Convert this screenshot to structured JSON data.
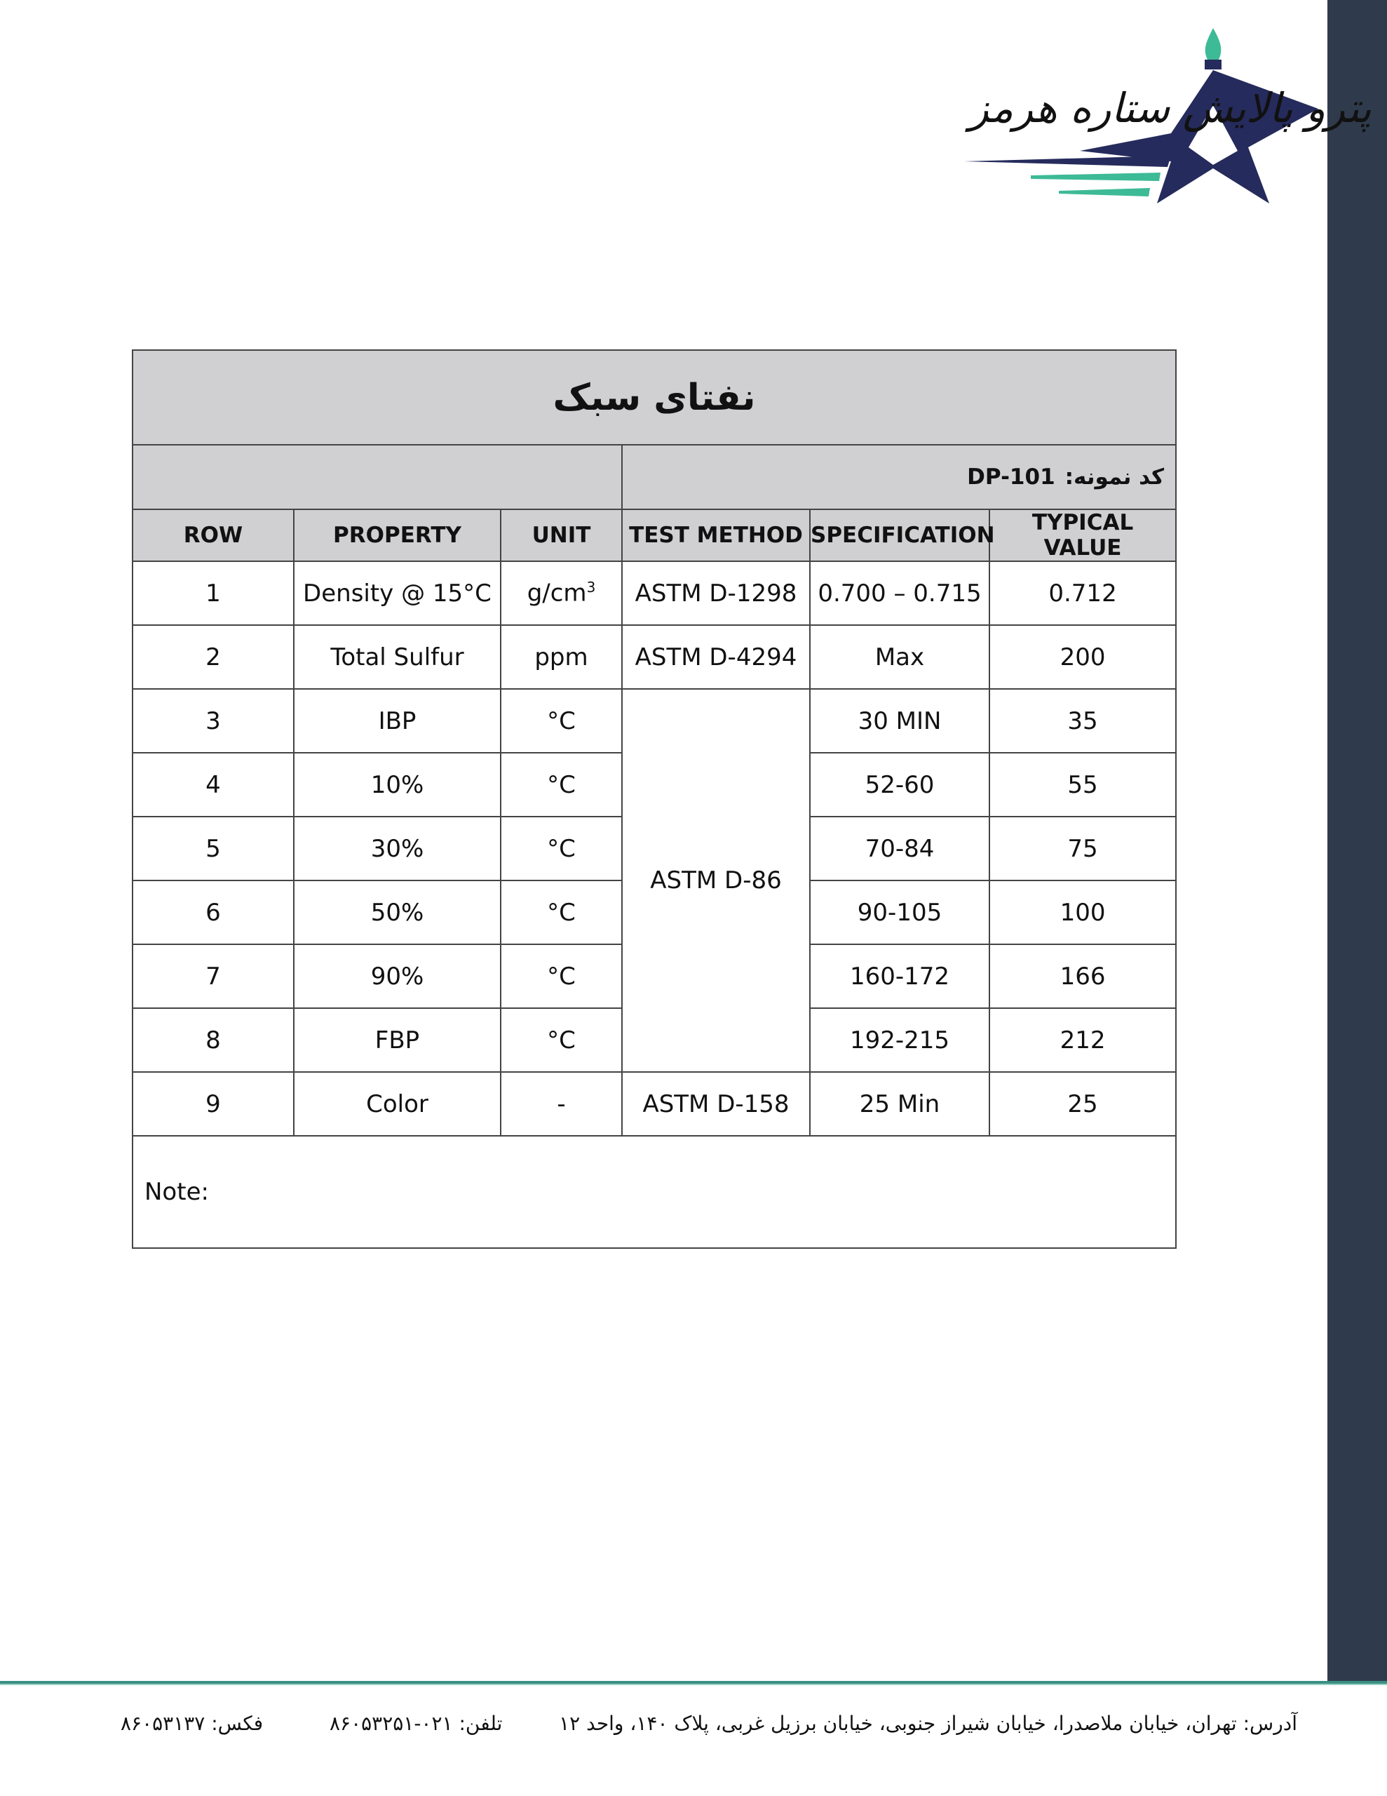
{
  "logo": {
    "text": "پترو پالایش ستاره هرمز",
    "colors": {
      "navy": "#252b5c",
      "green": "#3dba96"
    }
  },
  "title": "نفتای سبک",
  "sample_code": {
    "label": "کد نمونه:",
    "value": "DP-101"
  },
  "columns": [
    "ROW",
    "PROPERTY",
    "UNIT",
    "TEST METHOD",
    "SPECIFICATION",
    "TYPICAL VALUE"
  ],
  "rows": [
    {
      "row": "1",
      "property": "Density @ 15°C",
      "unit": "g/cm",
      "unit_sup": "3",
      "method": "ASTM D-1298",
      "spec": "0.700 – 0.715",
      "typical": "0.712"
    },
    {
      "row": "2",
      "property": "Total Sulfur",
      "unit": "ppm",
      "method": "ASTM D-4294",
      "spec": "Max",
      "typical": "200"
    },
    {
      "row": "3",
      "property": "IBP",
      "unit": "°C",
      "method": "ASTM D-86",
      "spec": "30 MIN",
      "typical": "35"
    },
    {
      "row": "4",
      "property": "10%",
      "unit": "°C",
      "spec": "52-60",
      "typical": "55"
    },
    {
      "row": "5",
      "property": "30%",
      "unit": "°C",
      "spec": "70-84",
      "typical": "75"
    },
    {
      "row": "6",
      "property": "50%",
      "unit": "°C",
      "spec": "90-105",
      "typical": "100"
    },
    {
      "row": "7",
      "property": "90%",
      "unit": "°C",
      "spec": "160-172",
      "typical": "166"
    },
    {
      "row": "8",
      "property": "FBP",
      "unit": "°C",
      "spec": "192-215",
      "typical": "212"
    },
    {
      "row": "9",
      "property": "Color",
      "unit": "-",
      "method": "ASTM D-158",
      "spec": "25 Min",
      "typical": "25"
    }
  ],
  "note_label": "Note:",
  "footer": {
    "address": "آدرس: تهران، خیابان ملاصدرا، خیابان شیراز جنوبی، خیابان برزیل غربی، پلاک ۱۴۰، واحد ۱۲",
    "phone": "تلفن: ۰۲۱-۸۶۰۵۳۲۵۱",
    "fax": "فکس: ۸۶۰۵۳۱۳۷"
  },
  "colors": {
    "sidebar": "#2f3b4c",
    "header_bg": "#d0cfd1",
    "footer_line": "#3a8f83"
  }
}
